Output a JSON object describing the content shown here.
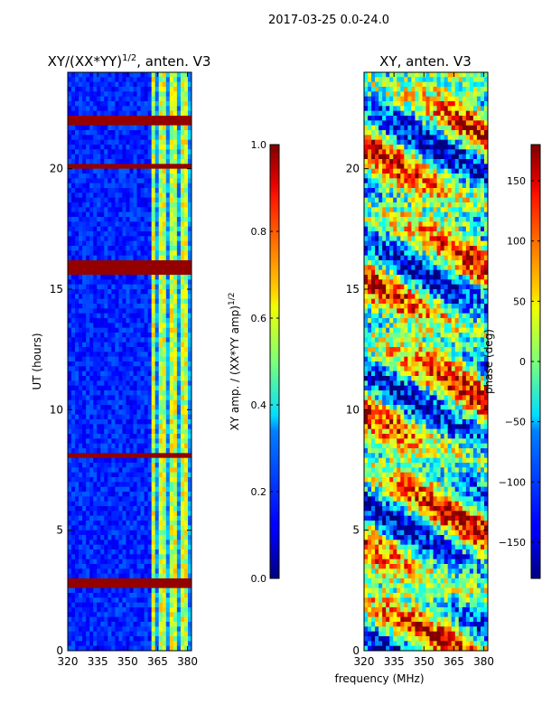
{
  "figure_title": "2017-03-25 0.0-24.0",
  "shared_xlabel": "frequency (MHz)",
  "chart_data": [
    {
      "type": "heatmap",
      "title": "XY/(XX*YY)",
      "title_superscript": "1/2",
      "title_suffix": ", anten. V3",
      "xlabel": "",
      "ylabel": "UT (hours)",
      "xlim": [
        320,
        382
      ],
      "ylim": [
        0,
        24
      ],
      "xticks": [
        "320",
        "335",
        "350",
        "365",
        "380"
      ],
      "yticks": [
        "0",
        "5",
        "10",
        "15",
        "20"
      ],
      "colormap": "jet",
      "colorbar": {
        "label": "XY amp. / (XX*YY amp)",
        "label_superscript": "1/2",
        "range": [
          0.0,
          1.0
        ],
        "ticks": [
          "0.0",
          "0.2",
          "0.4",
          "0.6",
          "0.8",
          "1.0"
        ]
      },
      "saturated_bands_hours": [
        [
          2.7,
          3.1
        ],
        [
          15.6,
          16.1
        ],
        [
          21.9,
          22.1
        ],
        [
          8.0,
          8.2
        ],
        [
          20.0,
          20.2
        ]
      ],
      "high_frequency_band_mhz": [
        362,
        382
      ],
      "background_level": 0.1
    },
    {
      "type": "heatmap",
      "title": "XY, anten. V3",
      "xlabel": "frequency (MHz)",
      "ylabel": "",
      "xlim": [
        320,
        382
      ],
      "ylim": [
        0,
        24
      ],
      "xticks": [
        "320",
        "335",
        "350",
        "365",
        "380"
      ],
      "yticks": [
        "0",
        "5",
        "10",
        "15",
        "20"
      ],
      "colormap": "jet",
      "colorbar": {
        "label": "phase (deg)",
        "range": [
          -180,
          180
        ],
        "ticks": [
          "−150",
          "−100",
          "−50",
          "0",
          "50",
          "100",
          "150"
        ]
      }
    }
  ]
}
